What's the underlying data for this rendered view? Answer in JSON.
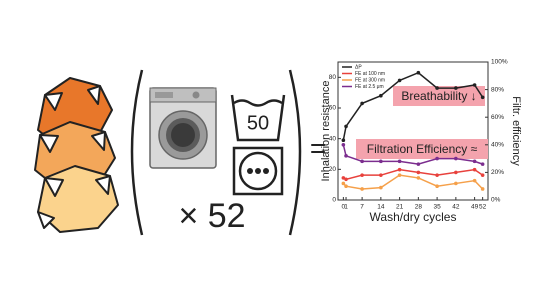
{
  "graphic": {
    "wash_temperature": "50",
    "cycles_label": "× 52",
    "equals": "="
  },
  "chart_data": {
    "type": "line",
    "x": [
      0,
      1,
      7,
      14,
      21,
      28,
      35,
      42,
      49,
      52
    ],
    "xlim": [
      -2,
      54
    ],
    "xticks": [
      0,
      1,
      7,
      14,
      21,
      28,
      35,
      42,
      49,
      52
    ],
    "ylim": [
      0,
      90
    ],
    "yticks": [
      0,
      20,
      40,
      60,
      80
    ],
    "y2lim": [
      0,
      100
    ],
    "y2ticks": [
      {
        "value": 0,
        "label": "0%"
      },
      {
        "value": 20,
        "label": "20%"
      },
      {
        "value": 40,
        "label": "40%"
      },
      {
        "value": 60,
        "label": "60%"
      },
      {
        "value": 80,
        "label": "80%"
      },
      {
        "value": 100,
        "label": "100%"
      }
    ],
    "x_label": "Wash/dry cycles",
    "y_label": "Inhalation resistance",
    "y2_label": "Filtr. efficiency",
    "annotations": [
      "Breathability ↓",
      "Filtration Efficiency ≈"
    ],
    "series": [
      {
        "name": "ΔP",
        "color": "#222222",
        "values": [
          39,
          48,
          63,
          68,
          78,
          83,
          73,
          73,
          75,
          67
        ]
      },
      {
        "name": "FE at 100 nm",
        "color": "#e8413c",
        "axis": "y2",
        "values": [
          16,
          15,
          18,
          18,
          22,
          20,
          18,
          20,
          22,
          18
        ]
      },
      {
        "name": "FE at 300 nm",
        "color": "#f5a04a",
        "axis": "y2",
        "values": [
          12,
          10,
          8,
          9,
          18,
          16,
          10,
          12,
          14,
          8
        ]
      },
      {
        "name": "FE at 2.5 μm",
        "color": "#7b2d8e",
        "axis": "y2",
        "values": [
          40,
          32,
          28,
          28,
          28,
          26,
          30,
          30,
          28,
          26
        ]
      }
    ]
  }
}
